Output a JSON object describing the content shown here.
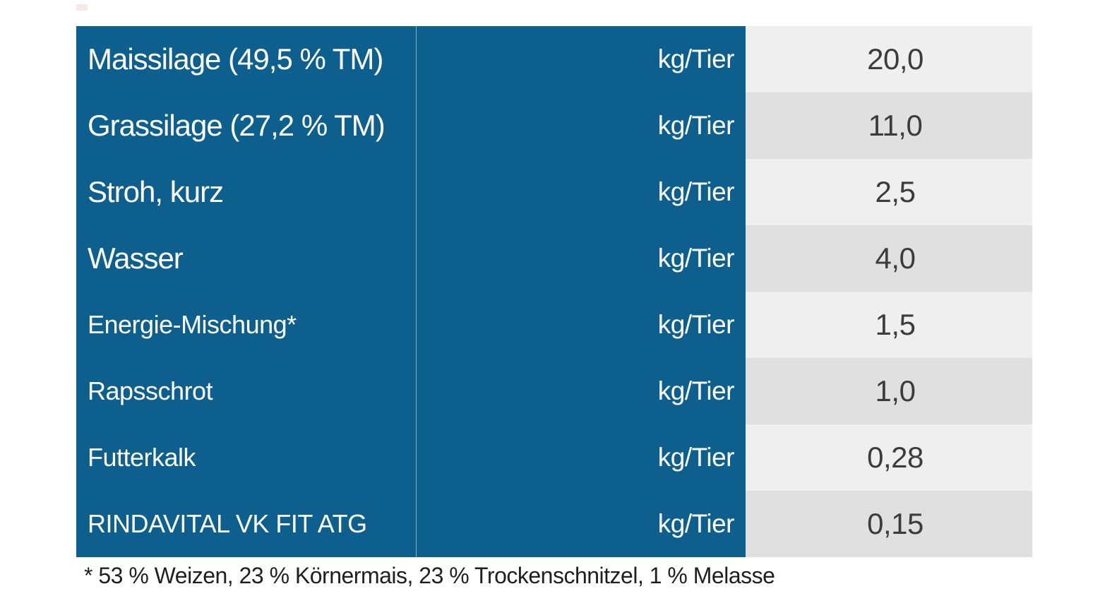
{
  "table": {
    "rows": [
      {
        "name": "Maissilage (49,5 % TM)",
        "unit": "kg/Tier",
        "value": "20,0",
        "size": "large"
      },
      {
        "name": "Grassilage (27,2 % TM)",
        "unit": "kg/Tier",
        "value": "11,0",
        "size": "large"
      },
      {
        "name": "Stroh, kurz",
        "unit": "kg/Tier",
        "value": "2,5",
        "size": "large"
      },
      {
        "name": "Wasser",
        "unit": "kg/Tier",
        "value": "4,0",
        "size": "large"
      },
      {
        "name": "Energie-Mischung*",
        "unit": "kg/Tier",
        "value": "1,5",
        "size": "small"
      },
      {
        "name": "Rapsschrot",
        "unit": "kg/Tier",
        "value": "1,0",
        "size": "small"
      },
      {
        "name": "Futterkalk",
        "unit": "kg/Tier",
        "value": "0,28",
        "size": "small"
      },
      {
        "name": "RINDAVITAL VK FIT ATG",
        "unit": "kg/Tier",
        "value": "0,15",
        "size": "small"
      }
    ]
  },
  "footnote": "* 53 % Weizen, 23 % Körnermais, 23 % Trockenschnitzel, 1 % Melasse",
  "colors": {
    "blue": "#0d5f8e",
    "row_light": "#efefef",
    "row_dark": "#e0e0e0",
    "value_text": "#3c3c3c",
    "footnote_text": "#1f1f1f"
  }
}
